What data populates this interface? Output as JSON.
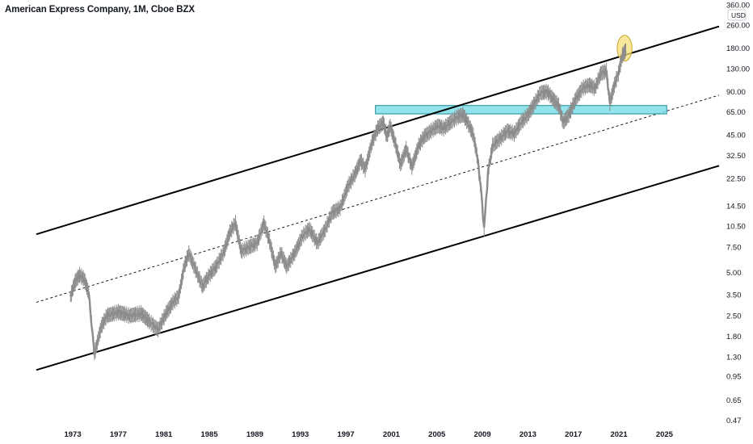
{
  "chart_title": "American Express Company, 1M, Cboe BZX",
  "colors": {
    "price": "#8c8c8c",
    "channel": "#000000",
    "support_zone_fill": "#80deea",
    "support_zone_stroke": "#1b8a97",
    "highlight_fill": "#f7df7a",
    "highlight_stroke": "#c9a227"
  },
  "chart_data": {
    "type": "line",
    "title": "American Express Company, 1M, Cboe BZX",
    "y_scale": "log",
    "y_unit": "USD",
    "xlim": [
      1969.8,
      2029.8
    ],
    "ylim": [
      0.45,
      360
    ],
    "y_ticks": [
      "360.00",
      "260.00",
      "180.00",
      "130.00",
      "90.00",
      "65.00",
      "45.00",
      "32.50",
      "22.50",
      "14.50",
      "10.50",
      "7.50",
      "5.00",
      "3.50",
      "2.50",
      "1.80",
      "1.30",
      "0.95",
      "0.65",
      "0.47"
    ],
    "x_ticks": [
      "1973",
      "1977",
      "1981",
      "1985",
      "1989",
      "1993",
      "1997",
      "2001",
      "2005",
      "2009",
      "2013",
      "2017",
      "2021",
      "2025"
    ],
    "grid": false,
    "series": [
      {
        "values": [
          [
            1972.8,
            3.4
          ],
          [
            1973.2,
            4.3
          ],
          [
            1973.6,
            4.8
          ],
          [
            1974.0,
            4.5
          ],
          [
            1974.4,
            3.6
          ],
          [
            1974.9,
            1.35
          ],
          [
            1975.5,
            2.1
          ],
          [
            1976.0,
            2.5
          ],
          [
            1977.0,
            2.65
          ],
          [
            1978.0,
            2.5
          ],
          [
            1979.0,
            2.6
          ],
          [
            1979.8,
            2.25
          ],
          [
            1980.5,
            2.0
          ],
          [
            1981.2,
            2.6
          ],
          [
            1981.8,
            3.1
          ],
          [
            1982.3,
            3.4
          ],
          [
            1982.8,
            5.5
          ],
          [
            1983.2,
            6.8
          ],
          [
            1983.8,
            5.2
          ],
          [
            1984.4,
            4.0
          ],
          [
            1985.0,
            4.8
          ],
          [
            1985.6,
            5.5
          ],
          [
            1986.3,
            7.0
          ],
          [
            1986.8,
            9.5
          ],
          [
            1987.3,
            11.0
          ],
          [
            1987.8,
            7.0
          ],
          [
            1988.5,
            7.5
          ],
          [
            1989.2,
            8.0
          ],
          [
            1989.8,
            11.0
          ],
          [
            1990.3,
            8.2
          ],
          [
            1990.8,
            5.5
          ],
          [
            1991.3,
            6.8
          ],
          [
            1991.8,
            5.5
          ],
          [
            1992.5,
            6.8
          ],
          [
            1993.2,
            9.0
          ],
          [
            1993.8,
            10.0
          ],
          [
            1994.5,
            8.0
          ],
          [
            1995.2,
            10.0
          ],
          [
            1995.8,
            13.0
          ],
          [
            1996.5,
            14.0
          ],
          [
            1997.2,
            20.0
          ],
          [
            1997.8,
            24.0
          ],
          [
            1998.3,
            30.0
          ],
          [
            1998.7,
            26.0
          ],
          [
            1999.3,
            40.0
          ],
          [
            1999.8,
            50.0
          ],
          [
            2000.3,
            55.0
          ],
          [
            2000.6,
            44.0
          ],
          [
            2000.9,
            52.0
          ],
          [
            2001.4,
            38.0
          ],
          [
            2001.8,
            28.0
          ],
          [
            2002.3,
            36.0
          ],
          [
            2002.8,
            27.0
          ],
          [
            2003.4,
            38.0
          ],
          [
            2003.9,
            44.0
          ],
          [
            2004.5,
            48.0
          ],
          [
            2005.1,
            52.0
          ],
          [
            2005.6,
            50.0
          ],
          [
            2006.2,
            55.0
          ],
          [
            2006.8,
            60.0
          ],
          [
            2007.3,
            62.0
          ],
          [
            2007.7,
            55.0
          ],
          [
            2008.2,
            45.0
          ],
          [
            2008.6,
            30.0
          ],
          [
            2008.9,
            18.0
          ],
          [
            2009.15,
            10.0
          ],
          [
            2009.5,
            25.0
          ],
          [
            2009.9,
            38.0
          ],
          [
            2010.5,
            42.0
          ],
          [
            2011.2,
            48.0
          ],
          [
            2011.8,
            46.0
          ],
          [
            2012.4,
            55.0
          ],
          [
            2013.0,
            62.0
          ],
          [
            2013.6,
            75.0
          ],
          [
            2014.1,
            88.0
          ],
          [
            2014.7,
            90.0
          ],
          [
            2015.2,
            80.0
          ],
          [
            2015.7,
            72.0
          ],
          [
            2016.1,
            55.0
          ],
          [
            2016.6,
            62.0
          ],
          [
            2017.2,
            80.0
          ],
          [
            2017.8,
            95.0
          ],
          [
            2018.4,
            100.0
          ],
          [
            2018.9,
            95.0
          ],
          [
            2019.4,
            120.0
          ],
          [
            2019.9,
            125.0
          ],
          [
            2020.2,
            75.0
          ],
          [
            2020.6,
            100.0
          ],
          [
            2020.95,
            120.0
          ],
          [
            2021.3,
            160.0
          ],
          [
            2021.6,
            175.0
          ]
        ]
      }
    ],
    "annotations": {
      "channel_upper": [
        [
          1969.8,
          9.2
        ],
        [
          2029.8,
          255.0
        ]
      ],
      "channel_lower": [
        [
          1969.8,
          1.05
        ],
        [
          2029.8,
          27.5
        ]
      ],
      "midline_dashed": [
        [
          1969.8,
          3.1
        ],
        [
          2029.8,
          85.0
        ]
      ],
      "support_zone": {
        "x0": 1999.6,
        "x1": 2025.2,
        "y_low": 63.0,
        "y_high": 72.0
      },
      "highlight_ellipse": {
        "x_center": 2021.5,
        "y_center": 180.0,
        "x_radius_years": 0.65
      }
    }
  }
}
